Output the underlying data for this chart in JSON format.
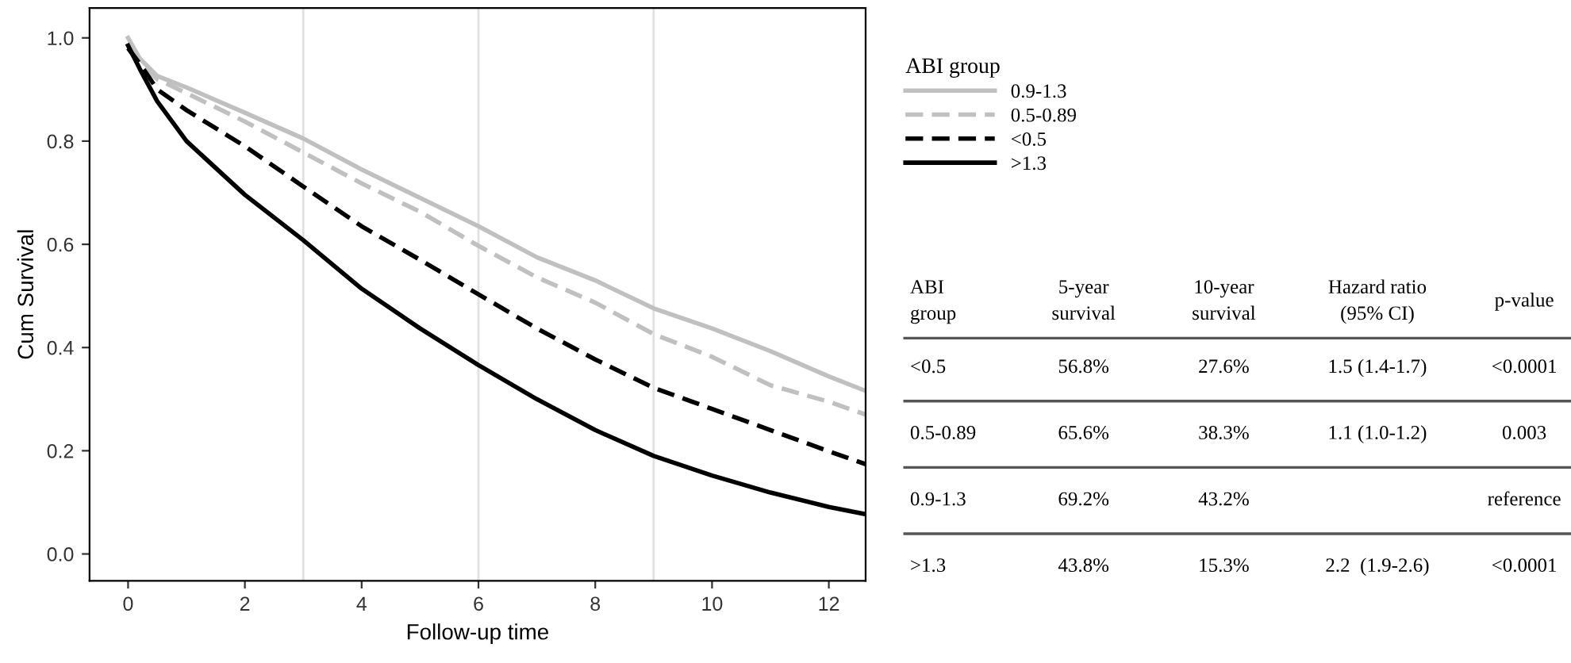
{
  "chart_data": [
    {
      "type": "line",
      "xlabel": "Follow-up time",
      "ylabel": "Cum Survival",
      "legend_title": "ABI group",
      "legend": "right",
      "x": [
        0,
        0.2,
        0.5,
        1,
        2,
        3,
        4,
        5,
        6,
        7,
        8,
        9,
        10,
        11,
        12,
        12.63
      ],
      "series": [
        {
          "name": "0.9-1.3",
          "color": "#c0c0c0",
          "line_style": "solid",
          "values": [
            1.0,
            0.96,
            0.926,
            0.904,
            0.855,
            0.805,
            0.745,
            0.69,
            0.635,
            0.575,
            0.53,
            0.476,
            0.437,
            0.393,
            0.344,
            0.316
          ]
        },
        {
          "name": "0.5-0.89",
          "color": "#c0c0c0",
          "line_style": "dashed",
          "values": [
            0.98,
            0.95,
            0.92,
            0.893,
            0.838,
            0.778,
            0.718,
            0.663,
            0.597,
            0.536,
            0.487,
            0.426,
            0.382,
            0.327,
            0.295,
            0.27
          ]
        },
        {
          "name": "<0.5",
          "color": "#000000",
          "line_style": "dashed",
          "values": [
            0.98,
            0.95,
            0.9,
            0.86,
            0.79,
            0.712,
            0.635,
            0.57,
            0.503,
            0.437,
            0.377,
            0.322,
            0.281,
            0.24,
            0.199,
            0.174
          ]
        },
        {
          "name": ">1.3",
          "color": "#000000",
          "line_style": "solid",
          "values": [
            0.985,
            0.94,
            0.877,
            0.8,
            0.696,
            0.608,
            0.514,
            0.437,
            0.366,
            0.3,
            0.24,
            0.19,
            0.152,
            0.119,
            0.091,
            0.077
          ]
        }
      ],
      "xlim": [
        -0.66,
        12.63
      ],
      "ylim": [
        -0.052,
        1.058
      ],
      "xticks": [
        0,
        2,
        4,
        6,
        8,
        10,
        12
      ],
      "yticks": [
        {
          "value": 0,
          "label": "0.0"
        },
        0.2,
        0.4,
        0.6,
        0.8,
        {
          "value": 1,
          "label": "1.0"
        }
      ],
      "ref_lines": [
        {
          "axis": "x",
          "value": 3,
          "color": "#e0e0e0"
        },
        {
          "axis": "x",
          "value": 6,
          "color": "#e0e0e0"
        },
        {
          "axis": "x",
          "value": 9,
          "color": "#e0e0e0"
        }
      ]
    },
    {
      "type": "other",
      "annotations": [
        "ABI\ngroup",
        "5-year\nsurvival",
        "10-year\nsurvival",
        "Hazard ratio\n(95% CI)",
        "p-value",
        "<0.5",
        "56.8%",
        "27.6%",
        "1.5 (1.4-1.7)",
        "<0.0001",
        "0.5-0.89",
        "65.6%",
        "38.3%",
        "1.1 (1.0-1.2)",
        "0.003",
        "0.9-1.3",
        "69.2%",
        "43.2%",
        null,
        "reference",
        ">1.3",
        "43.8%",
        "15.3%",
        "2.2  (1.9-2.6)",
        "<0.0001"
      ]
    }
  ]
}
